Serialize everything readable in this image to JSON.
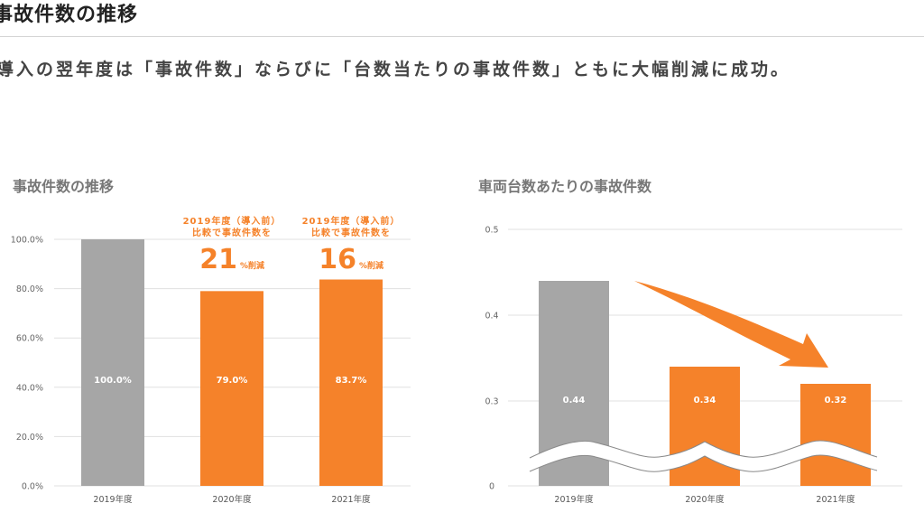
{
  "page": {
    "title": "事故件数の推移",
    "headline": "導入の翌年度は「事故件数」ならびに「台数当たりの事故件数」ともに大幅削減に成功。"
  },
  "colors": {
    "baseline": "#a6a6a6",
    "accent": "#f5822a",
    "grid": "#e0e0e0",
    "text": "#444444"
  },
  "chart_data": [
    {
      "type": "bar",
      "title": "事故件数の推移",
      "categories": [
        "2019年度",
        "2020年度",
        "2021年度"
      ],
      "values": [
        100.0,
        79.0,
        83.7
      ],
      "value_labels": [
        "100.0%",
        "79.0%",
        "83.7%"
      ],
      "xlabel": "",
      "ylabel": "",
      "ylim": [
        0,
        100
      ],
      "yticks": [
        0,
        20,
        40,
        60,
        80,
        100
      ],
      "ytick_labels": [
        "0.0%",
        "20.0%",
        "40.0%",
        "60.0%",
        "80.0%",
        "100.0%"
      ],
      "grid": true,
      "legend": "none",
      "annotations": [
        {
          "category": "2020年度",
          "line1": "2019年度（導入前）",
          "line2": "比較で事故件数を",
          "big": "21",
          "unit": "%削減"
        },
        {
          "category": "2021年度",
          "line1": "2019年度（導入前）",
          "line2": "比較で事故件数を",
          "big": "16",
          "unit": "%削減"
        }
      ]
    },
    {
      "type": "bar",
      "title": "車両台数あたりの事故件数",
      "categories": [
        "2019年度",
        "2020年度",
        "2021年度"
      ],
      "values": [
        0.44,
        0.34,
        0.32
      ],
      "value_labels": [
        "0.44",
        "0.34",
        "0.32"
      ],
      "xlabel": "",
      "ylabel": "",
      "ylim": [
        0,
        0.5
      ],
      "axis_break": [
        0,
        0.3
      ],
      "yticks": [
        0,
        0.3,
        0.4,
        0.5
      ],
      "ytick_labels": [
        "0",
        "0.3",
        "0.4",
        "0.5"
      ],
      "grid": true,
      "legend": "none",
      "annotations": [
        {
          "type": "arrow",
          "direction": "downward trend",
          "from": "2019年度",
          "to": "2021年度"
        }
      ]
    }
  ]
}
